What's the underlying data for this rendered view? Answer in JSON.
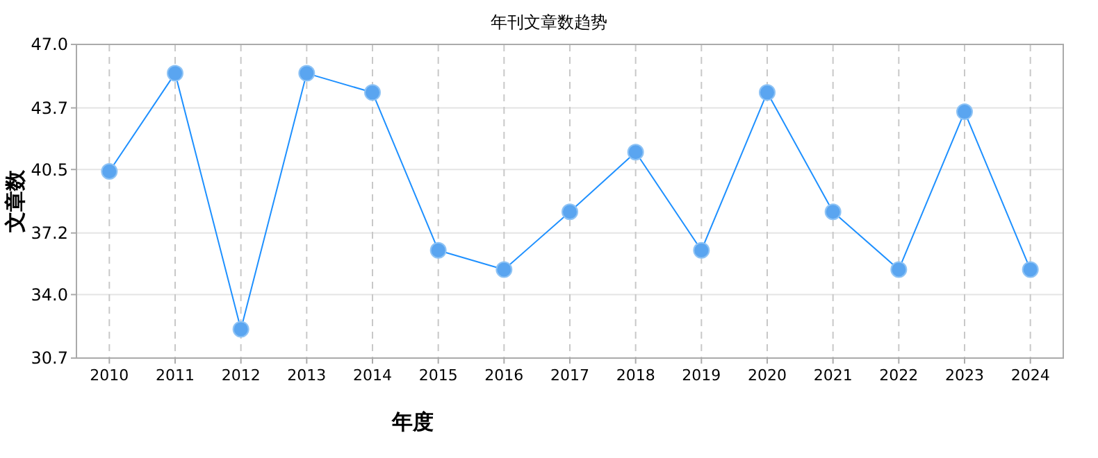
{
  "chart_data": {
    "type": "line",
    "title": "年刊文章数趋势",
    "xlabel": "年度",
    "ylabel": "文章数",
    "categories": [
      "2010",
      "2011",
      "2012",
      "2013",
      "2014",
      "2015",
      "2016",
      "2017",
      "2018",
      "2019",
      "2020",
      "2021",
      "2022",
      "2023",
      "2024"
    ],
    "series": [
      {
        "color": "#1e90ff",
        "values": [
          40.4,
          45.5,
          32.2,
          45.5,
          44.5,
          36.3,
          35.3,
          38.3,
          41.4,
          36.3,
          44.5,
          38.3,
          35.3,
          43.5,
          35.3
        ]
      }
    ],
    "ylim": [
      30.7,
      47.0
    ],
    "yticks": [
      {
        "value": 30.7,
        "label": "30.7"
      },
      {
        "value": 34.0,
        "label": "34.0"
      },
      {
        "value": 37.2,
        "label": "37.2"
      },
      {
        "value": 40.5,
        "label": "40.5"
      },
      {
        "value": 43.7,
        "label": "43.7"
      },
      {
        "value": 47.0,
        "label": "47.0"
      }
    ],
    "grid": true,
    "marker": "circle",
    "line_style": "solid"
  }
}
